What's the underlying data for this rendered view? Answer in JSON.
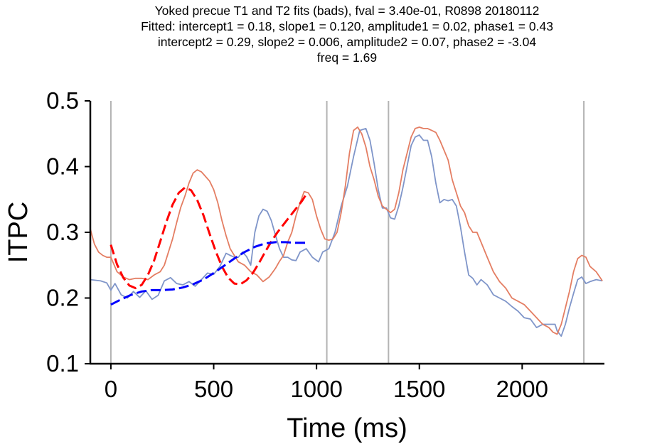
{
  "title_lines": [
    "Yoked precue T1 and T2 fits (bads), fval = 3.40e-01, R0898 20180112",
    "Fitted: intercept1 = 0.18, slope1 = 0.120, amplitude1 = 0.02, phase1 = 0.43",
    "intercept2 = 0.29, slope2 = 0.006, amplitude2 = 0.07, phase2 = -3.04",
    "freq = 1.69"
  ],
  "chart_data": {
    "type": "line",
    "title": "Yoked precue T1 and T2 fits (bads), fval = 3.40e-01, R0898 20180112 / Fitted: intercept1 = 0.18, slope1 = 0.120, amplitude1 = 0.02, phase1 = 0.43 / intercept2 = 0.29, slope2 = 0.006, amplitude2 = 0.07, phase2 = -3.04 / freq = 1.69",
    "xlabel": "Time (ms)",
    "ylabel": "ITPC",
    "xlim": [
      -100,
      2400
    ],
    "ylim": [
      0.1,
      0.5
    ],
    "xticks": [
      0,
      500,
      1000,
      1500,
      2000
    ],
    "yticks": [
      0.1,
      0.2,
      0.3,
      0.4,
      0.5
    ],
    "grid": false,
    "event_lines": [
      0,
      1050,
      1350,
      2300
    ],
    "colors": {
      "series_blue": "#7f95c9",
      "series_orange": "#e47e63",
      "fit_red": "#ff0000",
      "fit_blue": "#0000ff",
      "event_line": "#b3b3b3"
    },
    "series": [
      {
        "color": "#7f95c9",
        "style": "solid",
        "x": [
          -100,
          -50,
          -20,
          0,
          20,
          50,
          80,
          110,
          140,
          170,
          200,
          230,
          260,
          290,
          320,
          350,
          380,
          410,
          440,
          470,
          500,
          530,
          560,
          580,
          600,
          620,
          640,
          660,
          680,
          700,
          720,
          740,
          760,
          780,
          800,
          820,
          840,
          860,
          880,
          900,
          920,
          950,
          980,
          1010,
          1030,
          1060,
          1090,
          1120,
          1150,
          1180,
          1210,
          1240,
          1260,
          1280,
          1300,
          1320,
          1340,
          1360,
          1380,
          1400,
          1420,
          1440,
          1460,
          1480,
          1500,
          1520,
          1540,
          1560,
          1580,
          1600,
          1620,
          1640,
          1660,
          1680,
          1700,
          1720,
          1740,
          1760,
          1780,
          1800,
          1830,
          1860,
          1890,
          1920,
          1950,
          1980,
          2010,
          2040,
          2070,
          2100,
          2130,
          2160,
          2170,
          2190,
          2210,
          2230,
          2250,
          2270,
          2290,
          2310,
          2330,
          2360,
          2390
        ],
        "y": [
          0.228,
          0.226,
          0.223,
          0.212,
          0.222,
          0.205,
          0.2,
          0.21,
          0.201,
          0.211,
          0.198,
          0.204,
          0.226,
          0.231,
          0.222,
          0.22,
          0.225,
          0.218,
          0.228,
          0.238,
          0.236,
          0.248,
          0.268,
          0.265,
          0.262,
          0.262,
          0.27,
          0.263,
          0.25,
          0.3,
          0.325,
          0.335,
          0.332,
          0.318,
          0.296,
          0.275,
          0.262,
          0.262,
          0.258,
          0.257,
          0.27,
          0.275,
          0.262,
          0.255,
          0.27,
          0.275,
          0.3,
          0.34,
          0.37,
          0.415,
          0.455,
          0.458,
          0.44,
          0.405,
          0.365,
          0.337,
          0.337,
          0.322,
          0.32,
          0.34,
          0.368,
          0.4,
          0.432,
          0.445,
          0.448,
          0.44,
          0.44,
          0.415,
          0.375,
          0.345,
          0.35,
          0.348,
          0.35,
          0.34,
          0.308,
          0.27,
          0.235,
          0.23,
          0.22,
          0.228,
          0.22,
          0.205,
          0.2,
          0.195,
          0.187,
          0.18,
          0.17,
          0.168,
          0.155,
          0.16,
          0.16,
          0.16,
          0.15,
          0.142,
          0.16,
          0.185,
          0.207,
          0.228,
          0.232,
          0.222,
          0.225,
          0.228,
          0.226
        ]
      },
      {
        "color": "#e47e63",
        "style": "solid",
        "x": [
          -100,
          -80,
          -60,
          -40,
          -20,
          0,
          30,
          60,
          90,
          120,
          150,
          180,
          210,
          240,
          260,
          280,
          300,
          320,
          340,
          360,
          380,
          400,
          420,
          440,
          460,
          480,
          500,
          520,
          540,
          560,
          580,
          600,
          620,
          650,
          680,
          710,
          740,
          770,
          800,
          820,
          840,
          860,
          880,
          900,
          920,
          940,
          960,
          980,
          1000,
          1020,
          1040,
          1060,
          1080,
          1100,
          1120,
          1140,
          1160,
          1180,
          1200,
          1220,
          1240,
          1260,
          1280,
          1300,
          1320,
          1340,
          1360,
          1380,
          1400,
          1420,
          1440,
          1460,
          1480,
          1500,
          1520,
          1540,
          1560,
          1580,
          1600,
          1620,
          1640,
          1660,
          1680,
          1700,
          1720,
          1740,
          1760,
          1780,
          1800,
          1830,
          1860,
          1890,
          1920,
          1950,
          1980,
          2010,
          2040,
          2070,
          2100,
          2130,
          2150,
          2170,
          2190,
          2210,
          2230,
          2250,
          2270,
          2290,
          2310,
          2330,
          2360,
          2390
        ],
        "y": [
          0.305,
          0.282,
          0.27,
          0.265,
          0.262,
          0.262,
          0.24,
          0.232,
          0.228,
          0.23,
          0.23,
          0.228,
          0.235,
          0.24,
          0.25,
          0.27,
          0.29,
          0.315,
          0.338,
          0.355,
          0.375,
          0.39,
          0.395,
          0.392,
          0.385,
          0.378,
          0.365,
          0.345,
          0.318,
          0.295,
          0.275,
          0.265,
          0.255,
          0.25,
          0.24,
          0.235,
          0.225,
          0.232,
          0.245,
          0.256,
          0.265,
          0.285,
          0.3,
          0.325,
          0.345,
          0.362,
          0.36,
          0.35,
          0.325,
          0.305,
          0.29,
          0.288,
          0.29,
          0.3,
          0.33,
          0.37,
          0.42,
          0.455,
          0.46,
          0.45,
          0.43,
          0.4,
          0.38,
          0.355,
          0.34,
          0.335,
          0.33,
          0.335,
          0.36,
          0.395,
          0.42,
          0.445,
          0.458,
          0.46,
          0.458,
          0.458,
          0.455,
          0.452,
          0.44,
          0.425,
          0.41,
          0.38,
          0.36,
          0.34,
          0.33,
          0.31,
          0.3,
          0.3,
          0.285,
          0.262,
          0.24,
          0.225,
          0.215,
          0.2,
          0.195,
          0.19,
          0.18,
          0.17,
          0.16,
          0.155,
          0.148,
          0.145,
          0.16,
          0.185,
          0.21,
          0.24,
          0.26,
          0.265,
          0.262,
          0.248,
          0.24,
          0.226
        ]
      },
      {
        "color": "#ff0000",
        "style": "dashed",
        "x": [
          0,
          30,
          60,
          90,
          120,
          150,
          180,
          210,
          240,
          270,
          300,
          330,
          360,
          390,
          420,
          450,
          480,
          510,
          540,
          570,
          600,
          630,
          660,
          690,
          720,
          750,
          780,
          810,
          840,
          870,
          900,
          930,
          950
        ],
        "y": [
          0.281,
          0.251,
          0.231,
          0.219,
          0.215,
          0.22,
          0.235,
          0.257,
          0.286,
          0.316,
          0.342,
          0.36,
          0.368,
          0.364,
          0.349,
          0.326,
          0.298,
          0.271,
          0.248,
          0.231,
          0.222,
          0.221,
          0.227,
          0.238,
          0.253,
          0.27,
          0.286,
          0.3,
          0.312,
          0.324,
          0.336,
          0.348,
          0.358
        ]
      },
      {
        "color": "#0000ff",
        "style": "dashed",
        "x": [
          0,
          50,
          100,
          150,
          200,
          250,
          300,
          350,
          400,
          450,
          500,
          550,
          600,
          650,
          700,
          750,
          800,
          850,
          900,
          950
        ],
        "y": [
          0.19,
          0.198,
          0.205,
          0.21,
          0.212,
          0.212,
          0.213,
          0.216,
          0.221,
          0.228,
          0.238,
          0.249,
          0.26,
          0.27,
          0.278,
          0.283,
          0.285,
          0.285,
          0.284,
          0.284
        ]
      }
    ]
  }
}
